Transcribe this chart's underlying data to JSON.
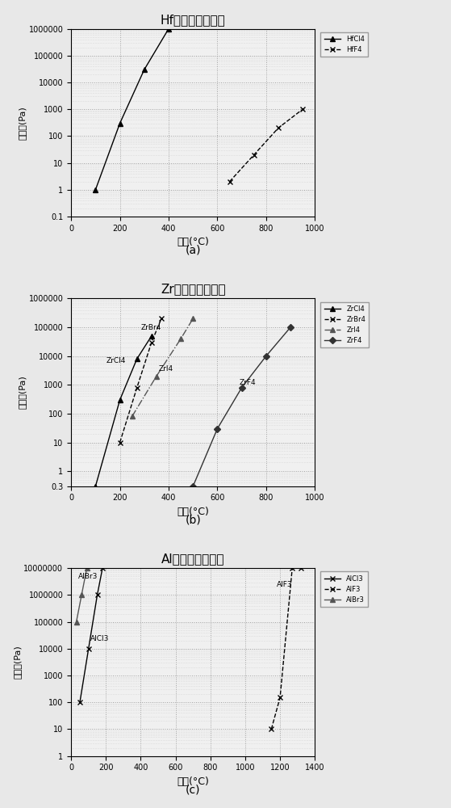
{
  "chart_a": {
    "title": "Hf化合物的蒸气压",
    "xlabel": "温度(°C)",
    "ylabel": "蒸气压(Pa)",
    "xlim": [
      0,
      1000
    ],
    "ylim_log": [
      0.1,
      1000000
    ],
    "yticks": [
      0.1,
      1,
      10,
      100,
      1000,
      10000,
      100000,
      1000000
    ],
    "ytick_labels": [
      "0.1",
      "1",
      "10",
      "100",
      "1000",
      "10000",
      "100000",
      "1000000"
    ],
    "xticks": [
      0,
      200,
      400,
      600,
      800,
      1000
    ],
    "series": [
      {
        "label": "HfCl4",
        "x": [
          100,
          200,
          300,
          400
        ],
        "y": [
          1,
          300,
          30000,
          1000000
        ],
        "marker": "^",
        "linestyle": "-",
        "color": "#000000"
      },
      {
        "label": "HfF4",
        "x": [
          650,
          750,
          850,
          950
        ],
        "y": [
          2,
          20,
          200,
          1000
        ],
        "marker": "x",
        "linestyle": "--",
        "color": "#000000"
      }
    ],
    "legend_labels": [
      "HfCl4",
      "HfF4"
    ],
    "subfig_label": "(a)"
  },
  "chart_b": {
    "title": "Zr化合物的蒸气压",
    "xlabel": "温度(°C)",
    "ylabel": "蒸气压(Pa)",
    "xlim": [
      0,
      1000
    ],
    "ylim_log": [
      0.3,
      1000000
    ],
    "yticks": [
      0.3,
      1,
      10,
      100,
      1000,
      10000,
      100000,
      1000000
    ],
    "ytick_labels": [
      "0.3",
      "1",
      "10",
      "100",
      "1000",
      "10000",
      "100000",
      "1000000"
    ],
    "xticks": [
      0,
      200,
      400,
      600,
      800,
      1000
    ],
    "series": [
      {
        "label": "ZrCl4",
        "x": [
          100,
          200,
          270,
          330
        ],
        "y": [
          0.3,
          300,
          8000,
          50000
        ],
        "marker": "^",
        "linestyle": "-",
        "color": "#000000",
        "ann_text": "ZrCl4",
        "ann_x": 140,
        "ann_y": 5000
      },
      {
        "label": "ZrBr4",
        "x": [
          200,
          270,
          330,
          370
        ],
        "y": [
          10,
          800,
          30000,
          200000
        ],
        "marker": "x",
        "linestyle": "--",
        "color": "#000000",
        "ann_text": "ZrBr4",
        "ann_x": 290,
        "ann_y": 200000
      },
      {
        "label": "ZrI4",
        "x": [
          250,
          350,
          450,
          500
        ],
        "y": [
          80,
          2000,
          40000,
          200000
        ],
        "marker": "^",
        "linestyle": "-.",
        "color": "#555555",
        "ann_text": "ZrI4",
        "ann_x": 350,
        "ann_y": 3000
      },
      {
        "label": "ZrF4",
        "x": [
          500,
          600,
          700,
          800,
          900
        ],
        "y": [
          0.3,
          30,
          800,
          10000,
          100000
        ],
        "marker": "D",
        "linestyle": "-",
        "color": "#333333",
        "ann_text": "ZrF4",
        "ann_x": 720,
        "ann_y": 1000
      }
    ],
    "legend_labels": [
      "ZrCl4",
      "ZrBr4",
      "ZrI4",
      "ZrF4"
    ],
    "subfig_label": "(b)"
  },
  "chart_c": {
    "title": "Al化合物的蒸气压",
    "xlabel": "温度(°C)",
    "ylabel": "蒸气压(Pa)",
    "xlim": [
      0,
      1400
    ],
    "ylim_log": [
      1,
      10000000
    ],
    "yticks": [
      1,
      10,
      100,
      1000,
      10000,
      100000,
      1000000,
      10000000
    ],
    "ytick_labels": [
      "1",
      "10",
      "100",
      "1000",
      "10000",
      "100000",
      "1000000",
      "10000000"
    ],
    "xticks": [
      0,
      200,
      400,
      600,
      800,
      1000,
      1200,
      1400
    ],
    "series": [
      {
        "label": "AlCl3",
        "x": [
          50,
          100,
          150,
          180
        ],
        "y": [
          100,
          10000,
          1000000,
          10000000
        ],
        "marker": "x",
        "linestyle": "-",
        "color": "#000000",
        "ann_text": "AlCl3",
        "ann_x": 130,
        "ann_y": 30000
      },
      {
        "label": "AlF3",
        "x": [
          1150,
          1200,
          1270,
          1320
        ],
        "y": [
          10,
          150,
          10000000,
          10000000
        ],
        "marker": "x",
        "linestyle": "--",
        "color": "#000000",
        "ann_text": "AlF3",
        "ann_x": 1180,
        "ann_y": 2000000
      },
      {
        "label": "AlBr3",
        "x": [
          30,
          60,
          90
        ],
        "y": [
          100000,
          1000000,
          10000000
        ],
        "marker": "^",
        "linestyle": "-",
        "color": "#555555",
        "ann_text": "AlBr3",
        "ann_x": 40,
        "ann_y": 4000000
      }
    ],
    "legend_labels": [
      "AlCl3",
      "AlF3",
      "AlBr3"
    ],
    "subfig_label": "(c)"
  }
}
